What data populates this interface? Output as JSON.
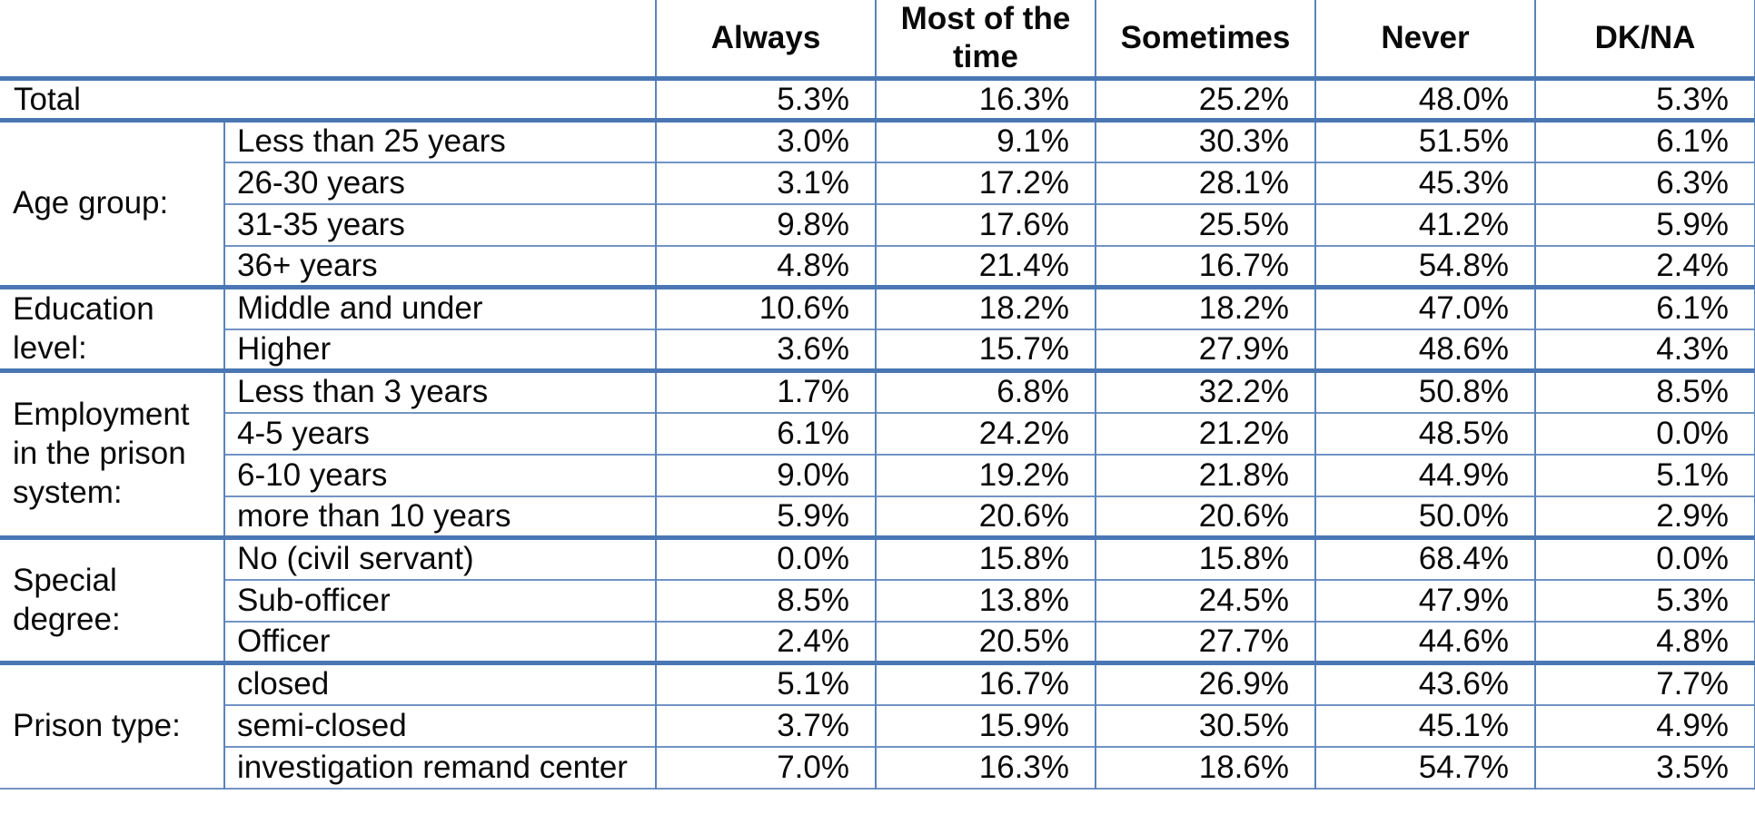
{
  "chart_data": {
    "type": "table",
    "value_columns": [
      "Always",
      "Most of the time",
      "Sometimes",
      "Never",
      "DK/NA"
    ],
    "total_row": {
      "label": "Total",
      "values": [
        "5.3%",
        "16.3%",
        "25.2%",
        "48.0%",
        "5.3%"
      ]
    },
    "groups": [
      {
        "label": "Age group:",
        "rows": [
          {
            "label": "Less than 25 years",
            "values": [
              "3.0%",
              "9.1%",
              "30.3%",
              "51.5%",
              "6.1%"
            ]
          },
          {
            "label": "26-30 years",
            "values": [
              "3.1%",
              "17.2%",
              "28.1%",
              "45.3%",
              "6.3%"
            ]
          },
          {
            "label": "31-35 years",
            "values": [
              "9.8%",
              "17.6%",
              "25.5%",
              "41.2%",
              "5.9%"
            ]
          },
          {
            "label": "36+ years",
            "values": [
              "4.8%",
              "21.4%",
              "16.7%",
              "54.8%",
              "2.4%"
            ]
          }
        ]
      },
      {
        "label": "Education level:",
        "rows": [
          {
            "label": "Middle and under",
            "values": [
              "10.6%",
              "18.2%",
              "18.2%",
              "47.0%",
              "6.1%"
            ]
          },
          {
            "label": "Higher",
            "values": [
              "3.6%",
              "15.7%",
              "27.9%",
              "48.6%",
              "4.3%"
            ]
          }
        ]
      },
      {
        "label": "Employment in the prison system:",
        "rows": [
          {
            "label": "Less than 3 years",
            "values": [
              "1.7%",
              "6.8%",
              "32.2%",
              "50.8%",
              "8.5%"
            ]
          },
          {
            "label": "4-5 years",
            "values": [
              "6.1%",
              "24.2%",
              "21.2%",
              "48.5%",
              "0.0%"
            ]
          },
          {
            "label": "6-10 years",
            "values": [
              "9.0%",
              "19.2%",
              "21.8%",
              "44.9%",
              "5.1%"
            ]
          },
          {
            "label": "more than 10 years",
            "values": [
              "5.9%",
              "20.6%",
              "20.6%",
              "50.0%",
              "2.9%"
            ]
          }
        ]
      },
      {
        "label": "Special degree:",
        "rows": [
          {
            "label": "No (civil servant)",
            "values": [
              "0.0%",
              "15.8%",
              "15.8%",
              "68.4%",
              "0.0%"
            ]
          },
          {
            "label": "Sub-officer",
            "values": [
              "8.5%",
              "13.8%",
              "24.5%",
              "47.9%",
              "5.3%"
            ]
          },
          {
            "label": "Officer",
            "values": [
              "2.4%",
              "20.5%",
              "27.7%",
              "44.6%",
              "4.8%"
            ]
          }
        ]
      },
      {
        "label": "Prison type:",
        "rows": [
          {
            "label": "closed",
            "values": [
              "5.1%",
              "16.7%",
              "26.9%",
              "43.6%",
              "7.7%"
            ]
          },
          {
            "label": "semi-closed",
            "values": [
              "3.7%",
              "15.9%",
              "30.5%",
              "45.1%",
              "4.9%"
            ]
          },
          {
            "label": "investigation remand center",
            "values": [
              "7.0%",
              "16.3%",
              "18.6%",
              "54.7%",
              "3.5%"
            ]
          }
        ]
      }
    ],
    "layout": {
      "grid": "on",
      "section_separator_color": "#4a77b4",
      "row_separator_color": "#7293c5",
      "column_separator_color": "#5a84bb",
      "text_color": "#0a0a0a",
      "background_color": "#ffffff"
    }
  }
}
